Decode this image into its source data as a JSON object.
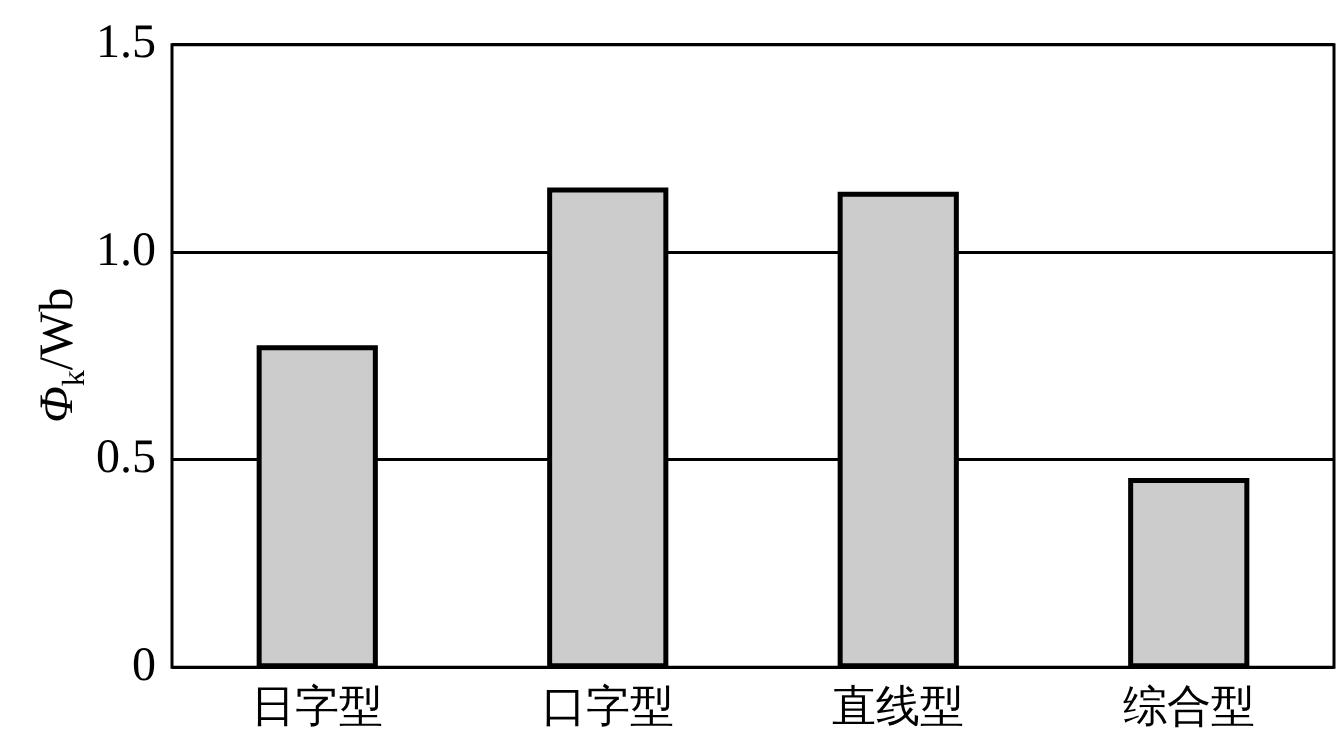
{
  "chart_data": {
    "type": "bar",
    "ylabel": "Φ$_{k}$/Wb",
    "categories": [
      "日字型",
      "口字型",
      "直线型",
      "综合型"
    ],
    "values": [
      0.77,
      1.15,
      1.14,
      0.45
    ],
    "color": "#cccccc",
    "ylim": [
      0,
      1.5
    ],
    "yticks": [
      0,
      {
        "value": 0.5,
        "label": "0.5"
      },
      {
        "value": 1,
        "label": "1.0"
      },
      1.5
    ],
    "grid": "y",
    "legend": false
  }
}
